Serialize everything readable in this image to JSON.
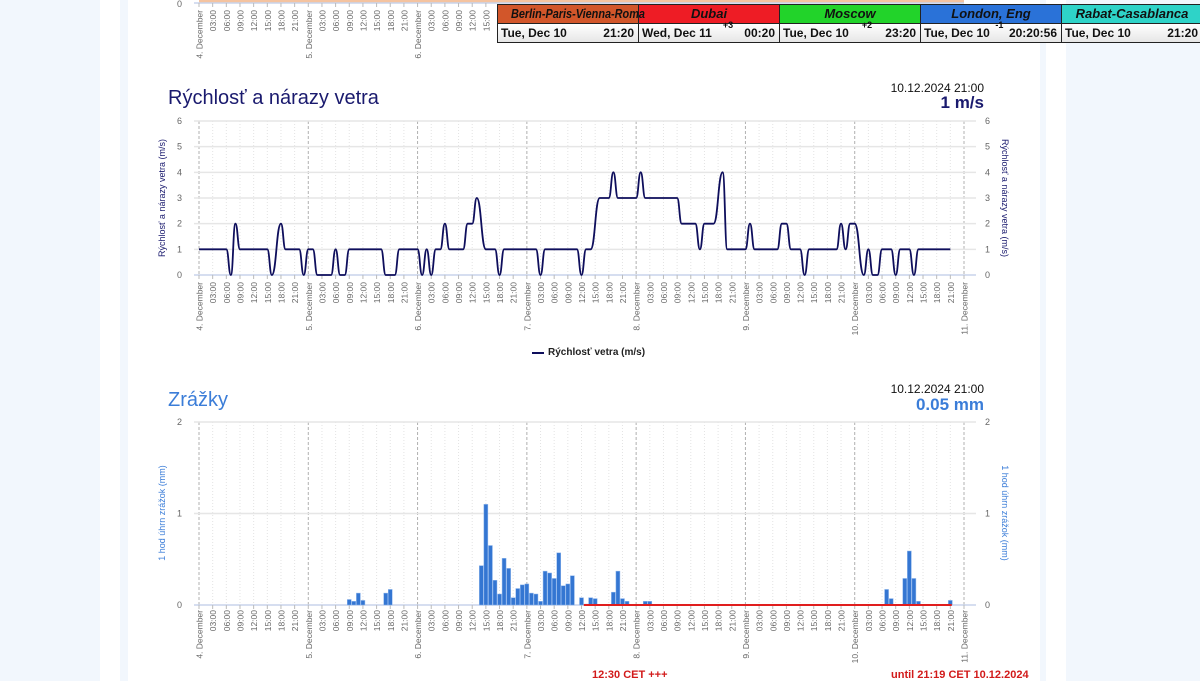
{
  "colors": {
    "wind_line": "#0e0e5c",
    "wind_title": "#1a1a6e",
    "precip_bar": "#3476d2",
    "precip_title": "#3b7dd8",
    "forecast_line": "#e01e1e",
    "grid": "#e6e6e6",
    "day_line": "#b0b0b0",
    "top_chart_line": "#f4c3a0"
  },
  "clocks": [
    {
      "city": "Berlin-Paris-Vienna-Roma",
      "date": "Tue, Dec 10",
      "offset": "",
      "time": "21:20",
      "color": "#d2562a"
    },
    {
      "city": "Dubai",
      "date": "Wed, Dec 11",
      "offset": "+3",
      "time": "00:20",
      "color": "#ee1c25"
    },
    {
      "city": "Moscow",
      "date": "Tue, Dec 10",
      "offset": "+2",
      "time": "23:20",
      "color": "#22d32a"
    },
    {
      "city": "London, Eng",
      "date": "Tue, Dec 10",
      "offset": "-1",
      "time": "20:20:56",
      "color": "#2a72d8"
    },
    {
      "city": "Rabat-Casablanca",
      "date": "Tue, Dec 10",
      "offset": "",
      "time": "21:20",
      "color": "#2ed3c8"
    }
  ],
  "top_chart": {
    "y_zero_label": "0"
  },
  "wind": {
    "title": "Rýchlosť a nárazy vetra",
    "timestamp": "10.12.2024 21:00",
    "current_value": "1 m/s",
    "legend": "Rýchlosť vetra (m/s)"
  },
  "precip": {
    "title": "Zrážky",
    "timestamp": "10.12.2024 21:00",
    "current_value": "0.05 mm",
    "note_start": "12:30 CET +++",
    "note_end": "until 21:19 CET 10.12.2024"
  },
  "chart_data": [
    {
      "type": "line",
      "ylabel": "Rýchlosť a nárazy vetra (m/s)",
      "ylim": [
        0,
        6
      ],
      "yticks": [
        0,
        1,
        2,
        3,
        4,
        5,
        6
      ],
      "xlim": [
        "2024-12-04 00:00",
        "2024-12-11 00:00"
      ],
      "day_labels": [
        "4. December",
        "5. December",
        "6. December",
        "7. December",
        "8. December",
        "9. December",
        "10. December",
        "11. December"
      ],
      "hour_labels": [
        "03:00",
        "06:00",
        "09:00",
        "12:00",
        "15:00",
        "18:00",
        "21:00"
      ],
      "grid": true,
      "legend_placement": "bottom",
      "series": [
        {
          "name": "Rýchlosť vetra (m/s)",
          "points": [
            [
              "2024-12-04 00:00",
              1
            ],
            [
              "2024-12-04 06:00",
              1
            ],
            [
              "2024-12-04 07:00",
              0
            ],
            [
              "2024-12-04 08:00",
              2
            ],
            [
              "2024-12-04 09:00",
              1
            ],
            [
              "2024-12-04 15:00",
              1
            ],
            [
              "2024-12-04 16:00",
              0
            ],
            [
              "2024-12-04 18:00",
              2
            ],
            [
              "2024-12-04 19:00",
              1
            ],
            [
              "2024-12-04 22:00",
              1
            ],
            [
              "2024-12-04 23:00",
              0
            ],
            [
              "2024-12-05 00:00",
              1
            ],
            [
              "2024-12-05 01:00",
              1
            ],
            [
              "2024-12-05 02:00",
              0
            ],
            [
              "2024-12-05 05:00",
              0
            ],
            [
              "2024-12-05 06:00",
              1
            ],
            [
              "2024-12-05 07:00",
              0
            ],
            [
              "2024-12-05 08:00",
              0
            ],
            [
              "2024-12-05 09:00",
              1
            ],
            [
              "2024-12-05 16:00",
              1
            ],
            [
              "2024-12-05 17:00",
              0
            ],
            [
              "2024-12-05 19:00",
              0
            ],
            [
              "2024-12-05 20:00",
              1
            ],
            [
              "2024-12-06 00:00",
              1
            ],
            [
              "2024-12-06 01:00",
              0
            ],
            [
              "2024-12-06 02:00",
              1
            ],
            [
              "2024-12-06 03:00",
              0
            ],
            [
              "2024-12-06 04:00",
              1
            ],
            [
              "2024-12-06 05:00",
              1
            ],
            [
              "2024-12-06 06:00",
              2
            ],
            [
              "2024-12-06 07:00",
              1
            ],
            [
              "2024-12-06 10:00",
              1
            ],
            [
              "2024-12-06 11:00",
              2
            ],
            [
              "2024-12-06 12:00",
              2
            ],
            [
              "2024-12-06 13:00",
              3
            ],
            [
              "2024-12-06 15:00",
              1
            ],
            [
              "2024-12-06 17:00",
              1
            ],
            [
              "2024-12-06 18:00",
              0
            ],
            [
              "2024-12-06 19:00",
              1
            ],
            [
              "2024-12-07 02:00",
              1
            ],
            [
              "2024-12-07 03:00",
              0
            ],
            [
              "2024-12-07 04:00",
              1
            ],
            [
              "2024-12-07 11:00",
              1
            ],
            [
              "2024-12-07 12:00",
              0
            ],
            [
              "2024-12-07 13:00",
              1
            ],
            [
              "2024-12-07 14:00",
              1
            ],
            [
              "2024-12-07 16:00",
              3
            ],
            [
              "2024-12-07 18:00",
              3
            ],
            [
              "2024-12-07 19:00",
              4
            ],
            [
              "2024-12-07 20:00",
              3
            ],
            [
              "2024-12-08 00:00",
              3
            ],
            [
              "2024-12-08 01:00",
              4
            ],
            [
              "2024-12-08 02:00",
              3
            ],
            [
              "2024-12-08 09:00",
              3
            ],
            [
              "2024-12-08 10:00",
              2
            ],
            [
              "2024-12-08 13:00",
              2
            ],
            [
              "2024-12-08 14:00",
              1
            ],
            [
              "2024-12-08 15:00",
              2
            ],
            [
              "2024-12-08 17:00",
              2
            ],
            [
              "2024-12-08 19:00",
              4
            ],
            [
              "2024-12-08 20:00",
              1
            ],
            [
              "2024-12-09 00:00",
              1
            ],
            [
              "2024-12-09 01:00",
              2
            ],
            [
              "2024-12-09 02:00",
              1
            ],
            [
              "2024-12-09 07:00",
              1
            ],
            [
              "2024-12-09 08:00",
              2
            ],
            [
              "2024-12-09 09:00",
              2
            ],
            [
              "2024-12-09 10:00",
              1
            ],
            [
              "2024-12-09 12:00",
              1
            ],
            [
              "2024-12-09 13:00",
              0
            ],
            [
              "2024-12-09 14:00",
              1
            ],
            [
              "2024-12-09 20:00",
              1
            ],
            [
              "2024-12-09 21:00",
              2
            ],
            [
              "2024-12-09 22:00",
              1
            ],
            [
              "2024-12-09 23:00",
              2
            ],
            [
              "2024-12-10 00:00",
              2
            ],
            [
              "2024-12-10 02:00",
              0
            ],
            [
              "2024-12-10 03:00",
              1
            ],
            [
              "2024-12-10 04:00",
              0
            ],
            [
              "2024-12-10 05:00",
              0
            ],
            [
              "2024-12-10 06:00",
              1
            ],
            [
              "2024-12-10 08:00",
              1
            ],
            [
              "2024-12-10 09:00",
              0
            ],
            [
              "2024-12-10 10:00",
              1
            ],
            [
              "2024-12-10 12:00",
              1
            ],
            [
              "2024-12-10 13:00",
              0
            ],
            [
              "2024-12-10 14:00",
              1
            ],
            [
              "2024-12-10 21:00",
              1
            ]
          ]
        }
      ]
    },
    {
      "type": "bar",
      "ylabel": "1 hod úhrn zrážok (mm)",
      "ylim": [
        0,
        2
      ],
      "yticks": [
        0,
        1,
        2
      ],
      "xlim": [
        "2024-12-04 00:00",
        "2024-12-11 00:00"
      ],
      "day_labels": [
        "4. December",
        "5. December",
        "6. December",
        "7. December",
        "8. December",
        "9. December",
        "10. December",
        "11. December"
      ],
      "hour_labels": [
        "03:00",
        "06:00",
        "09:00",
        "12:00",
        "15:00",
        "18:00",
        "21:00"
      ],
      "grid": true,
      "forecast_range": [
        "2024-12-07 12:30",
        "2024-12-10 21:19"
      ],
      "series": [
        {
          "points": [
            [
              "2024-12-05 09:00",
              0.06
            ],
            [
              "2024-12-05 10:00",
              0.04
            ],
            [
              "2024-12-05 11:00",
              0.13
            ],
            [
              "2024-12-05 12:00",
              0.05
            ],
            [
              "2024-12-05 17:00",
              0.13
            ],
            [
              "2024-12-05 18:00",
              0.17
            ],
            [
              "2024-12-06 14:00",
              0.43
            ],
            [
              "2024-12-06 15:00",
              1.1
            ],
            [
              "2024-12-06 16:00",
              0.65
            ],
            [
              "2024-12-06 17:00",
              0.27
            ],
            [
              "2024-12-06 18:00",
              0.12
            ],
            [
              "2024-12-06 19:00",
              0.51
            ],
            [
              "2024-12-06 20:00",
              0.4
            ],
            [
              "2024-12-06 21:00",
              0.08
            ],
            [
              "2024-12-06 22:00",
              0.18
            ],
            [
              "2024-12-06 23:00",
              0.22
            ],
            [
              "2024-12-07 00:00",
              0.23
            ],
            [
              "2024-12-07 01:00",
              0.13
            ],
            [
              "2024-12-07 02:00",
              0.12
            ],
            [
              "2024-12-07 03:00",
              0.04
            ],
            [
              "2024-12-07 04:00",
              0.37
            ],
            [
              "2024-12-07 05:00",
              0.35
            ],
            [
              "2024-12-07 06:00",
              0.29
            ],
            [
              "2024-12-07 07:00",
              0.57
            ],
            [
              "2024-12-07 08:00",
              0.21
            ],
            [
              "2024-12-07 09:00",
              0.23
            ],
            [
              "2024-12-07 10:00",
              0.32
            ],
            [
              "2024-12-07 12:00",
              0.08
            ],
            [
              "2024-12-07 13:00",
              0.01
            ],
            [
              "2024-12-07 14:00",
              0.08
            ],
            [
              "2024-12-07 15:00",
              0.07
            ],
            [
              "2024-12-07 19:00",
              0.14
            ],
            [
              "2024-12-07 20:00",
              0.37
            ],
            [
              "2024-12-07 21:00",
              0.07
            ],
            [
              "2024-12-07 22:00",
              0.04
            ],
            [
              "2024-12-08 02:00",
              0.04
            ],
            [
              "2024-12-08 03:00",
              0.04
            ],
            [
              "2024-12-10 07:00",
              0.17
            ],
            [
              "2024-12-10 08:00",
              0.07
            ],
            [
              "2024-12-10 11:00",
              0.29
            ],
            [
              "2024-12-10 12:00",
              0.59
            ],
            [
              "2024-12-10 13:00",
              0.29
            ],
            [
              "2024-12-10 14:00",
              0.04
            ],
            [
              "2024-12-10 21:00",
              0.05
            ]
          ]
        }
      ]
    }
  ]
}
